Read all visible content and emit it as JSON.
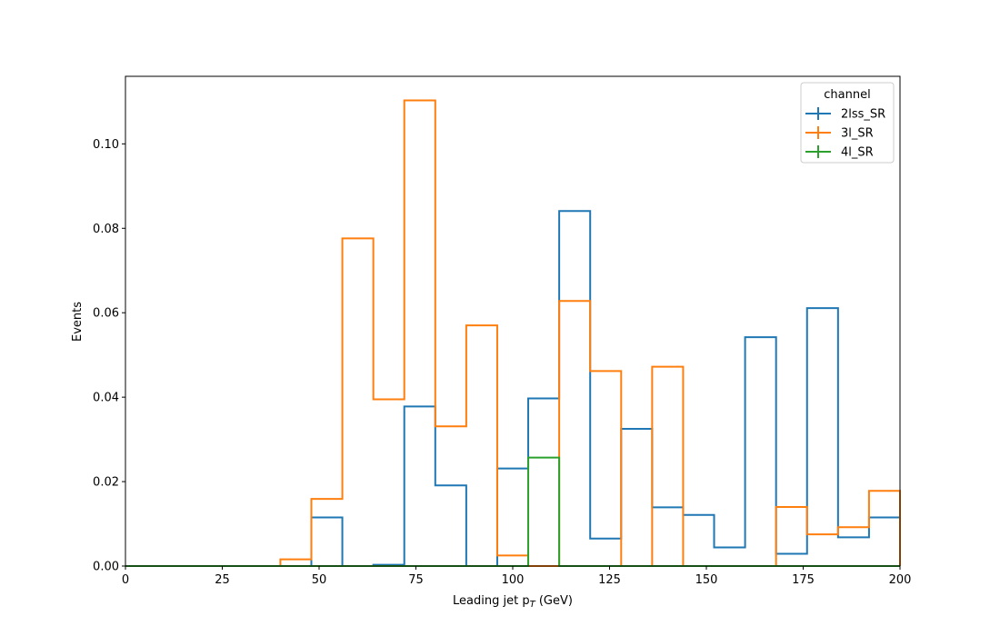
{
  "chart_data": {
    "type": "histogram-step",
    "xlabel": "Leading jet  p",
    "xlabel_sub": "T",
    "xlabel_unit": " (GeV)",
    "ylabel": "Events",
    "xlim": [
      0,
      200
    ],
    "ylim": [
      0,
      0.116
    ],
    "xticks": [
      0,
      25,
      50,
      75,
      100,
      125,
      150,
      175,
      200
    ],
    "yticks": [
      0.0,
      0.02,
      0.04,
      0.06,
      0.08,
      0.1
    ],
    "ytick_labels": [
      "0.00",
      "0.02",
      "0.04",
      "0.06",
      "0.08",
      "0.10"
    ],
    "bin_edges": [
      0,
      8,
      16,
      24,
      32,
      40,
      48,
      56,
      64,
      72,
      80,
      88,
      96,
      104,
      112,
      120,
      128,
      136,
      144,
      152,
      160,
      168,
      176,
      184,
      192,
      200
    ],
    "legend": {
      "title": "channel",
      "placement": "upper right"
    },
    "series": [
      {
        "name": "2lss_SR",
        "color": "#1f77b4",
        "values": [
          0,
          0,
          0,
          0,
          0,
          0,
          0.0115,
          0,
          0.0003,
          0.0378,
          0.0191,
          0,
          0.0231,
          0.0397,
          0.0841,
          0.0065,
          0.0325,
          0.0139,
          0.0121,
          0.0044,
          0.0542,
          0.0029,
          0.0611,
          0.0068,
          0.0115
        ]
      },
      {
        "name": "3l_SR",
        "color": "#ff7f0e",
        "values": [
          0,
          0,
          0,
          0,
          0,
          0.0016,
          0.0159,
          0.0776,
          0.0395,
          0.1103,
          0.0331,
          0.057,
          0.0025,
          0,
          0.0628,
          0.0462,
          0,
          0.0472,
          0,
          0,
          0,
          0.014,
          0.0075,
          0.0092,
          0.0178
        ]
      },
      {
        "name": "4l_SR",
        "color": "#2ca02c",
        "values": [
          0,
          0,
          0,
          0,
          0,
          0,
          0,
          0,
          0,
          0,
          0,
          0,
          0,
          0.0257,
          0,
          0,
          0,
          0,
          0,
          0,
          0,
          0,
          0,
          0,
          0
        ]
      }
    ]
  }
}
